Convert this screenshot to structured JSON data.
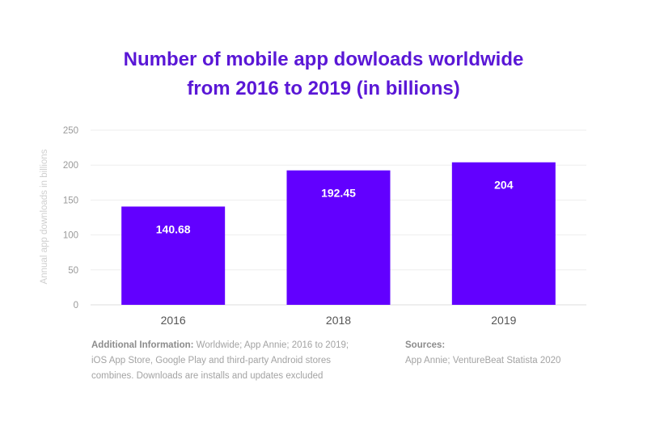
{
  "chart_data": {
    "type": "bar",
    "title_line1": "Number of mobile app dowloads worldwide",
    "title_line2": "from 2016 to 2019 (in billions)",
    "ylabel": "Annual app downloads in billions",
    "xlabel": "",
    "categories": [
      "2016",
      "2018",
      "2019"
    ],
    "values": [
      140.68,
      192.45,
      204
    ],
    "value_labels": [
      "140.68",
      "192.45",
      "204"
    ],
    "ylim": [
      0,
      250
    ],
    "yticks": [
      0,
      50,
      100,
      150,
      200,
      250
    ],
    "grid": true,
    "bar_color": "#6200ff",
    "title_color": "#5a17d6"
  },
  "footer": {
    "additional_label": "Additional Information:",
    "additional_text": " Worldwide; App Annie; 2016 to 2019; iOS App Store, Google Play and third-party Android stores combines. Downloads are installs and updates excluded",
    "sources_label": "Sources:",
    "sources_text": "App Annie; VentureBeat Statista 2020"
  }
}
